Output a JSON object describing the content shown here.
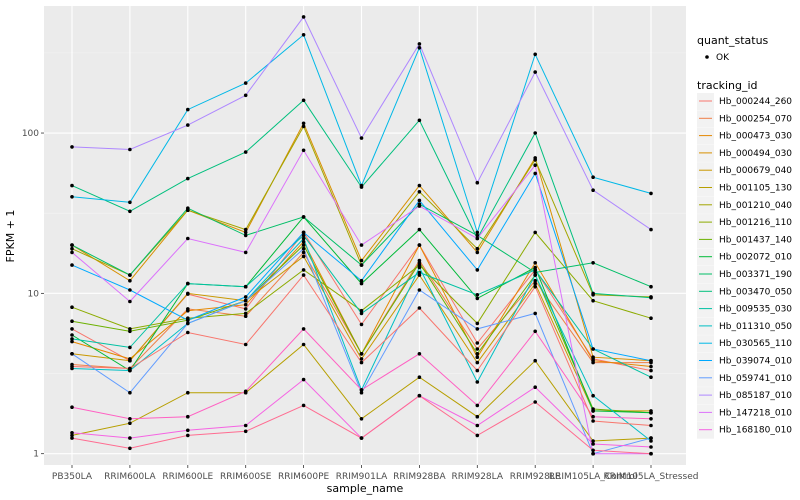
{
  "chart_data": {
    "type": "line",
    "title": "",
    "xlabel": "sample_name",
    "ylabel": "FPKM + 1",
    "y_scale": "log10",
    "ylim": [
      0.85,
      620
    ],
    "y_ticks": [
      1,
      10,
      100
    ],
    "grid": true,
    "legend_position": "right",
    "categories": [
      "PB350LA",
      "RRIM600LA",
      "RRIM600LE",
      "RRIM600SE",
      "RRIM600PE",
      "RRIM901LA",
      "RRIM928BA",
      "RRIM928LA",
      "RRIM928LE",
      "RRIM105LA_Control",
      "RRIM105LA_Stressed"
    ],
    "point_legend": {
      "title": "quant_status",
      "items": [
        "OK"
      ]
    },
    "legend_title": "tracking_id",
    "series": [
      {
        "name": "Hb_000244_260",
        "color": "#F8766D",
        "values": [
          6.0,
          3.8,
          9.9,
          8.0,
          24.0,
          6.4,
          20.0,
          4.9,
          14.0,
          3.9,
          3.3
        ]
      },
      {
        "name": "Hb_000254_070",
        "color": "#EF7F49",
        "values": [
          3.6,
          3.4,
          8.0,
          7.2,
          18.0,
          4.2,
          16.0,
          4.5,
          12.0,
          3.7,
          3.7
        ]
      },
      {
        "name": "Hb_000473_030",
        "color": "#E58700",
        "values": [
          5.0,
          3.9,
          7.8,
          8.5,
          21.0,
          4.2,
          20.0,
          4.0,
          15.5,
          3.8,
          3.5
        ]
      },
      {
        "name": "Hb_000494_030",
        "color": "#D89000",
        "values": [
          20.0,
          12.0,
          33.0,
          24.0,
          115.0,
          16.0,
          47.0,
          18.0,
          70.0,
          4.0,
          3.8
        ]
      },
      {
        "name": "Hb_000679_040",
        "color": "#C99800",
        "values": [
          4.2,
          3.8,
          10.0,
          9.0,
          17.0,
          3.9,
          13.0,
          3.7,
          11.5,
          1.85,
          1.85
        ]
      },
      {
        "name": "Hb_001105_130",
        "color": "#B79F00",
        "values": [
          1.3,
          1.55,
          2.4,
          2.4,
          4.8,
          1.65,
          3.0,
          1.7,
          3.8,
          1.2,
          1.25
        ]
      },
      {
        "name": "Hb_001210_040",
        "color": "#A3A500",
        "values": [
          19.0,
          13.0,
          33.0,
          25.0,
          110.0,
          15.0,
          43.0,
          19.0,
          68.0,
          9.8,
          9.5
        ]
      },
      {
        "name": "Hb_001216_110",
        "color": "#8CAB00",
        "values": [
          8.2,
          6.0,
          7.0,
          7.5,
          14.0,
          7.8,
          15.0,
          6.5,
          24.0,
          9.0,
          7.0
        ]
      },
      {
        "name": "Hb_001437_140",
        "color": "#6BB100",
        "values": [
          6.7,
          5.8,
          6.8,
          9.0,
          20.0,
          4.2,
          15.5,
          4.2,
          13.0,
          1.9,
          1.8
        ]
      },
      {
        "name": "Hb_002072_010",
        "color": "#00BA38",
        "values": [
          5.5,
          3.3,
          11.5,
          11.0,
          30.0,
          11.5,
          25.0,
          9.3,
          14.5,
          1.85,
          1.8
        ]
      },
      {
        "name": "Hb_003371_190",
        "color": "#00BE67",
        "values": [
          20.0,
          13.0,
          34.0,
          23.0,
          30.0,
          15.0,
          36.0,
          23.0,
          13.5,
          15.5,
          11.0
        ]
      },
      {
        "name": "Hb_003470_050",
        "color": "#00BF7D",
        "values": [
          47.0,
          32.5,
          52.0,
          76.0,
          160.0,
          46.0,
          120.0,
          22.0,
          100.0,
          10.0,
          9.4
        ]
      },
      {
        "name": "Hb_009535_030",
        "color": "#00C1A3",
        "values": [
          5.2,
          4.6,
          11.5,
          11.0,
          23.0,
          7.5,
          13.5,
          9.8,
          14.0,
          4.5,
          3.0
        ]
      },
      {
        "name": "Hb_011310_050",
        "color": "#00BFC4",
        "values": [
          3.4,
          3.3,
          6.5,
          9.0,
          22.0,
          2.5,
          14.5,
          2.8,
          13.0,
          2.3,
          1.2
        ]
      },
      {
        "name": "Hb_030565_110",
        "color": "#00B8E7",
        "values": [
          40.0,
          37.0,
          140.0,
          205.0,
          410.0,
          47.0,
          340.0,
          24.0,
          310.0,
          53.0,
          42.0
        ]
      },
      {
        "name": "Hb_039074_010",
        "color": "#00A9FF",
        "values": [
          15.0,
          10.5,
          6.8,
          9.5,
          24.0,
          12.0,
          38.0,
          14.0,
          56.0,
          4.5,
          3.8
        ]
      },
      {
        "name": "Hb_059741_010",
        "color": "#619CFF",
        "values": [
          4.2,
          2.4,
          6.5,
          9.0,
          19.0,
          2.4,
          10.5,
          6.0,
          7.5,
          1.0,
          1.25
        ]
      },
      {
        "name": "Hb_085187_010",
        "color": "#AE87FF",
        "values": [
          82.0,
          79.0,
          112.0,
          172.0,
          530.0,
          93.0,
          360.0,
          49.0,
          240.0,
          44.0,
          25.0
        ]
      },
      {
        "name": "Hb_147218_010",
        "color": "#DB72FB",
        "values": [
          18.0,
          8.9,
          22.0,
          18.0,
          78.0,
          20.0,
          35.0,
          22.0,
          63.0,
          1.0,
          1.0
        ]
      },
      {
        "name": "Hb_168180_010",
        "color": "#F564E3",
        "values": [
          1.35,
          1.25,
          1.4,
          1.5,
          2.9,
          1.25,
          2.3,
          1.5,
          2.6,
          1.15,
          1.1
        ]
      },
      {
        "name": "",
        "color": "#FF61C3",
        "values": [
          1.95,
          1.65,
          1.7,
          2.45,
          6.0,
          2.5,
          4.2,
          2.0,
          5.8,
          1.7,
          1.65
        ]
      },
      {
        "name": "",
        "color": "#FF6C91",
        "values": [
          1.25,
          1.08,
          1.3,
          1.38,
          2.0,
          1.25,
          2.3,
          1.3,
          2.1,
          1.05,
          1.0
        ]
      },
      {
        "name": "",
        "color": "#F8766D",
        "values": [
          3.5,
          3.4,
          5.7,
          4.8,
          13.0,
          3.7,
          8.1,
          3.3,
          11.0,
          1.6,
          1.5
        ]
      }
    ]
  }
}
